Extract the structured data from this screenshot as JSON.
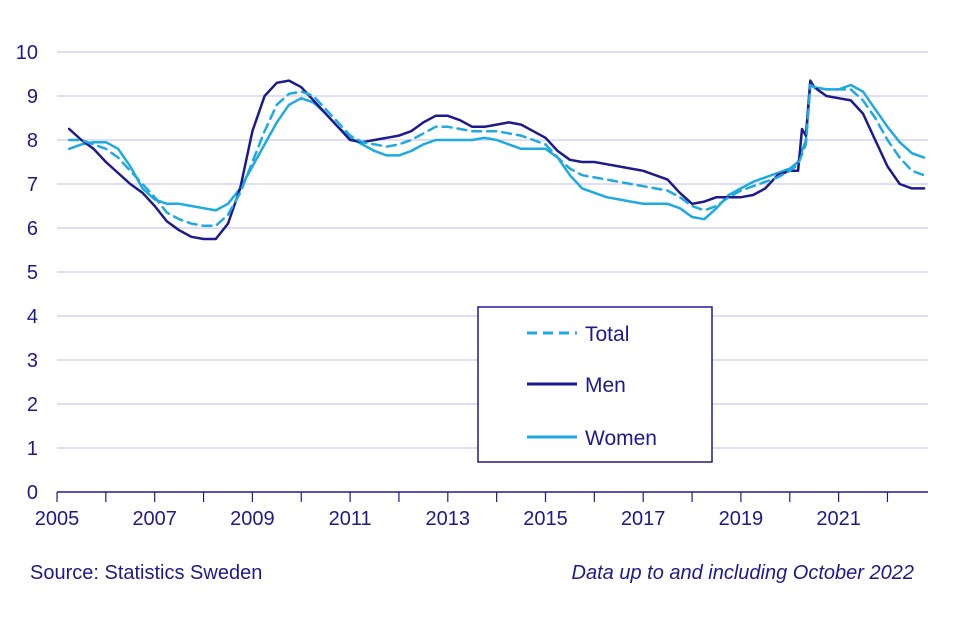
{
  "colors": {
    "total": "#1fa9e1",
    "men": "#1e1a8c",
    "women": "#1fa9e1",
    "grid": "#c9c9ee",
    "axis": "#1e1a8c"
  },
  "chart_data": {
    "type": "line",
    "title": "",
    "xlabel": "",
    "ylabel": "",
    "xlim": [
      2005,
      2022.83
    ],
    "ylim": [
      0,
      10
    ],
    "yticks": [
      0,
      1,
      2,
      3,
      4,
      5,
      6,
      7,
      8,
      9,
      10
    ],
    "xticks": [
      2005,
      2007,
      2009,
      2011,
      2013,
      2015,
      2017,
      2019,
      2021
    ],
    "grid": "horizontal",
    "legend_position": "center-right",
    "series": [
      {
        "name": "Total",
        "style": "dashed",
        "x": [
          2005.25,
          2005.5,
          2005.75,
          2006.0,
          2006.25,
          2006.5,
          2006.75,
          2007.0,
          2007.25,
          2007.5,
          2007.75,
          2008.0,
          2008.25,
          2008.5,
          2008.75,
          2009.0,
          2009.25,
          2009.5,
          2009.75,
          2010.0,
          2010.25,
          2010.5,
          2010.75,
          2011.0,
          2011.25,
          2011.5,
          2011.75,
          2012.0,
          2012.25,
          2012.5,
          2012.75,
          2013.0,
          2013.25,
          2013.5,
          2013.75,
          2014.0,
          2014.25,
          2014.5,
          2014.75,
          2015.0,
          2015.25,
          2015.5,
          2015.75,
          2016.0,
          2016.25,
          2016.5,
          2016.75,
          2017.0,
          2017.25,
          2017.5,
          2017.75,
          2018.0,
          2018.25,
          2018.5,
          2018.75,
          2019.0,
          2019.25,
          2019.5,
          2019.75,
          2020.0,
          2020.17,
          2020.33,
          2020.42,
          2020.5,
          2020.75,
          2021.0,
          2021.25,
          2021.5,
          2021.75,
          2022.0,
          2022.25,
          2022.5,
          2022.75
        ],
        "values": [
          8.0,
          8.0,
          7.9,
          7.8,
          7.6,
          7.3,
          7.0,
          6.7,
          6.35,
          6.2,
          6.1,
          6.05,
          6.05,
          6.3,
          6.8,
          7.5,
          8.2,
          8.8,
          9.05,
          9.1,
          9.0,
          8.7,
          8.4,
          8.1,
          7.95,
          7.9,
          7.85,
          7.9,
          8.0,
          8.15,
          8.3,
          8.3,
          8.25,
          8.2,
          8.2,
          8.2,
          8.15,
          8.1,
          8.0,
          7.9,
          7.6,
          7.35,
          7.2,
          7.15,
          7.1,
          7.05,
          7.0,
          6.95,
          6.9,
          6.85,
          6.7,
          6.5,
          6.4,
          6.5,
          6.7,
          6.85,
          6.95,
          7.05,
          7.15,
          7.3,
          7.45,
          7.9,
          9.25,
          9.2,
          9.15,
          9.15,
          9.15,
          8.9,
          8.5,
          8.0,
          7.6,
          7.3,
          7.2
        ]
      },
      {
        "name": "Men",
        "style": "solid",
        "x": [
          2005.25,
          2005.5,
          2005.75,
          2006.0,
          2006.25,
          2006.5,
          2006.75,
          2007.0,
          2007.25,
          2007.5,
          2007.75,
          2008.0,
          2008.25,
          2008.5,
          2008.75,
          2009.0,
          2009.25,
          2009.5,
          2009.75,
          2010.0,
          2010.25,
          2010.5,
          2010.75,
          2011.0,
          2011.25,
          2011.5,
          2011.75,
          2012.0,
          2012.25,
          2012.5,
          2012.75,
          2013.0,
          2013.25,
          2013.5,
          2013.75,
          2014.0,
          2014.25,
          2014.5,
          2014.75,
          2015.0,
          2015.25,
          2015.5,
          2015.75,
          2016.0,
          2016.25,
          2016.5,
          2016.75,
          2017.0,
          2017.25,
          2017.5,
          2017.75,
          2018.0,
          2018.25,
          2018.5,
          2018.75,
          2019.0,
          2019.25,
          2019.5,
          2019.75,
          2020.0,
          2020.17,
          2020.25,
          2020.33,
          2020.42,
          2020.5,
          2020.75,
          2021.0,
          2021.25,
          2021.5,
          2021.75,
          2022.0,
          2022.25,
          2022.5,
          2022.75
        ],
        "values": [
          8.25,
          8.0,
          7.8,
          7.5,
          7.25,
          7.0,
          6.8,
          6.5,
          6.15,
          5.95,
          5.8,
          5.75,
          5.75,
          6.1,
          6.9,
          8.2,
          9.0,
          9.3,
          9.35,
          9.2,
          8.9,
          8.6,
          8.3,
          8.0,
          7.95,
          8.0,
          8.05,
          8.1,
          8.2,
          8.4,
          8.55,
          8.55,
          8.45,
          8.3,
          8.3,
          8.35,
          8.4,
          8.35,
          8.2,
          8.05,
          7.75,
          7.55,
          7.5,
          7.5,
          7.45,
          7.4,
          7.35,
          7.3,
          7.2,
          7.1,
          6.8,
          6.55,
          6.6,
          6.7,
          6.7,
          6.7,
          6.75,
          6.9,
          7.2,
          7.3,
          7.3,
          8.25,
          8.1,
          9.35,
          9.2,
          9.0,
          8.95,
          8.9,
          8.6,
          8.0,
          7.4,
          7.0,
          6.9,
          6.9
        ]
      },
      {
        "name": "Women",
        "style": "solid",
        "x": [
          2005.25,
          2005.5,
          2005.75,
          2006.0,
          2006.25,
          2006.5,
          2006.75,
          2007.0,
          2007.25,
          2007.5,
          2007.75,
          2008.0,
          2008.25,
          2008.5,
          2008.75,
          2009.0,
          2009.25,
          2009.5,
          2009.75,
          2010.0,
          2010.25,
          2010.5,
          2010.75,
          2011.0,
          2011.25,
          2011.5,
          2011.75,
          2012.0,
          2012.25,
          2012.5,
          2012.75,
          2013.0,
          2013.25,
          2013.5,
          2013.75,
          2014.0,
          2014.25,
          2014.5,
          2014.75,
          2015.0,
          2015.25,
          2015.5,
          2015.75,
          2016.0,
          2016.25,
          2016.5,
          2016.75,
          2017.0,
          2017.25,
          2017.5,
          2017.75,
          2018.0,
          2018.25,
          2018.5,
          2018.75,
          2019.0,
          2019.25,
          2019.5,
          2019.75,
          2020.0,
          2020.17,
          2020.33,
          2020.42,
          2020.5,
          2020.75,
          2021.0,
          2021.25,
          2021.5,
          2021.75,
          2022.0,
          2022.25,
          2022.5,
          2022.75
        ],
        "values": [
          7.8,
          7.9,
          7.95,
          7.95,
          7.8,
          7.4,
          6.9,
          6.65,
          6.55,
          6.55,
          6.5,
          6.45,
          6.4,
          6.55,
          6.9,
          7.4,
          7.9,
          8.4,
          8.8,
          8.95,
          8.85,
          8.6,
          8.3,
          8.05,
          7.9,
          7.75,
          7.65,
          7.65,
          7.75,
          7.9,
          8.0,
          8.0,
          8.0,
          8.0,
          8.05,
          8.0,
          7.9,
          7.8,
          7.8,
          7.8,
          7.6,
          7.2,
          6.9,
          6.8,
          6.7,
          6.65,
          6.6,
          6.55,
          6.55,
          6.55,
          6.45,
          6.25,
          6.2,
          6.45,
          6.75,
          6.9,
          7.05,
          7.15,
          7.25,
          7.35,
          7.5,
          8.0,
          9.25,
          9.2,
          9.15,
          9.15,
          9.25,
          9.1,
          8.7,
          8.3,
          7.95,
          7.7,
          7.6
        ]
      }
    ]
  },
  "footer": {
    "source": "Source: Statistics Sweden",
    "note": "Data up to and including October 2022"
  }
}
